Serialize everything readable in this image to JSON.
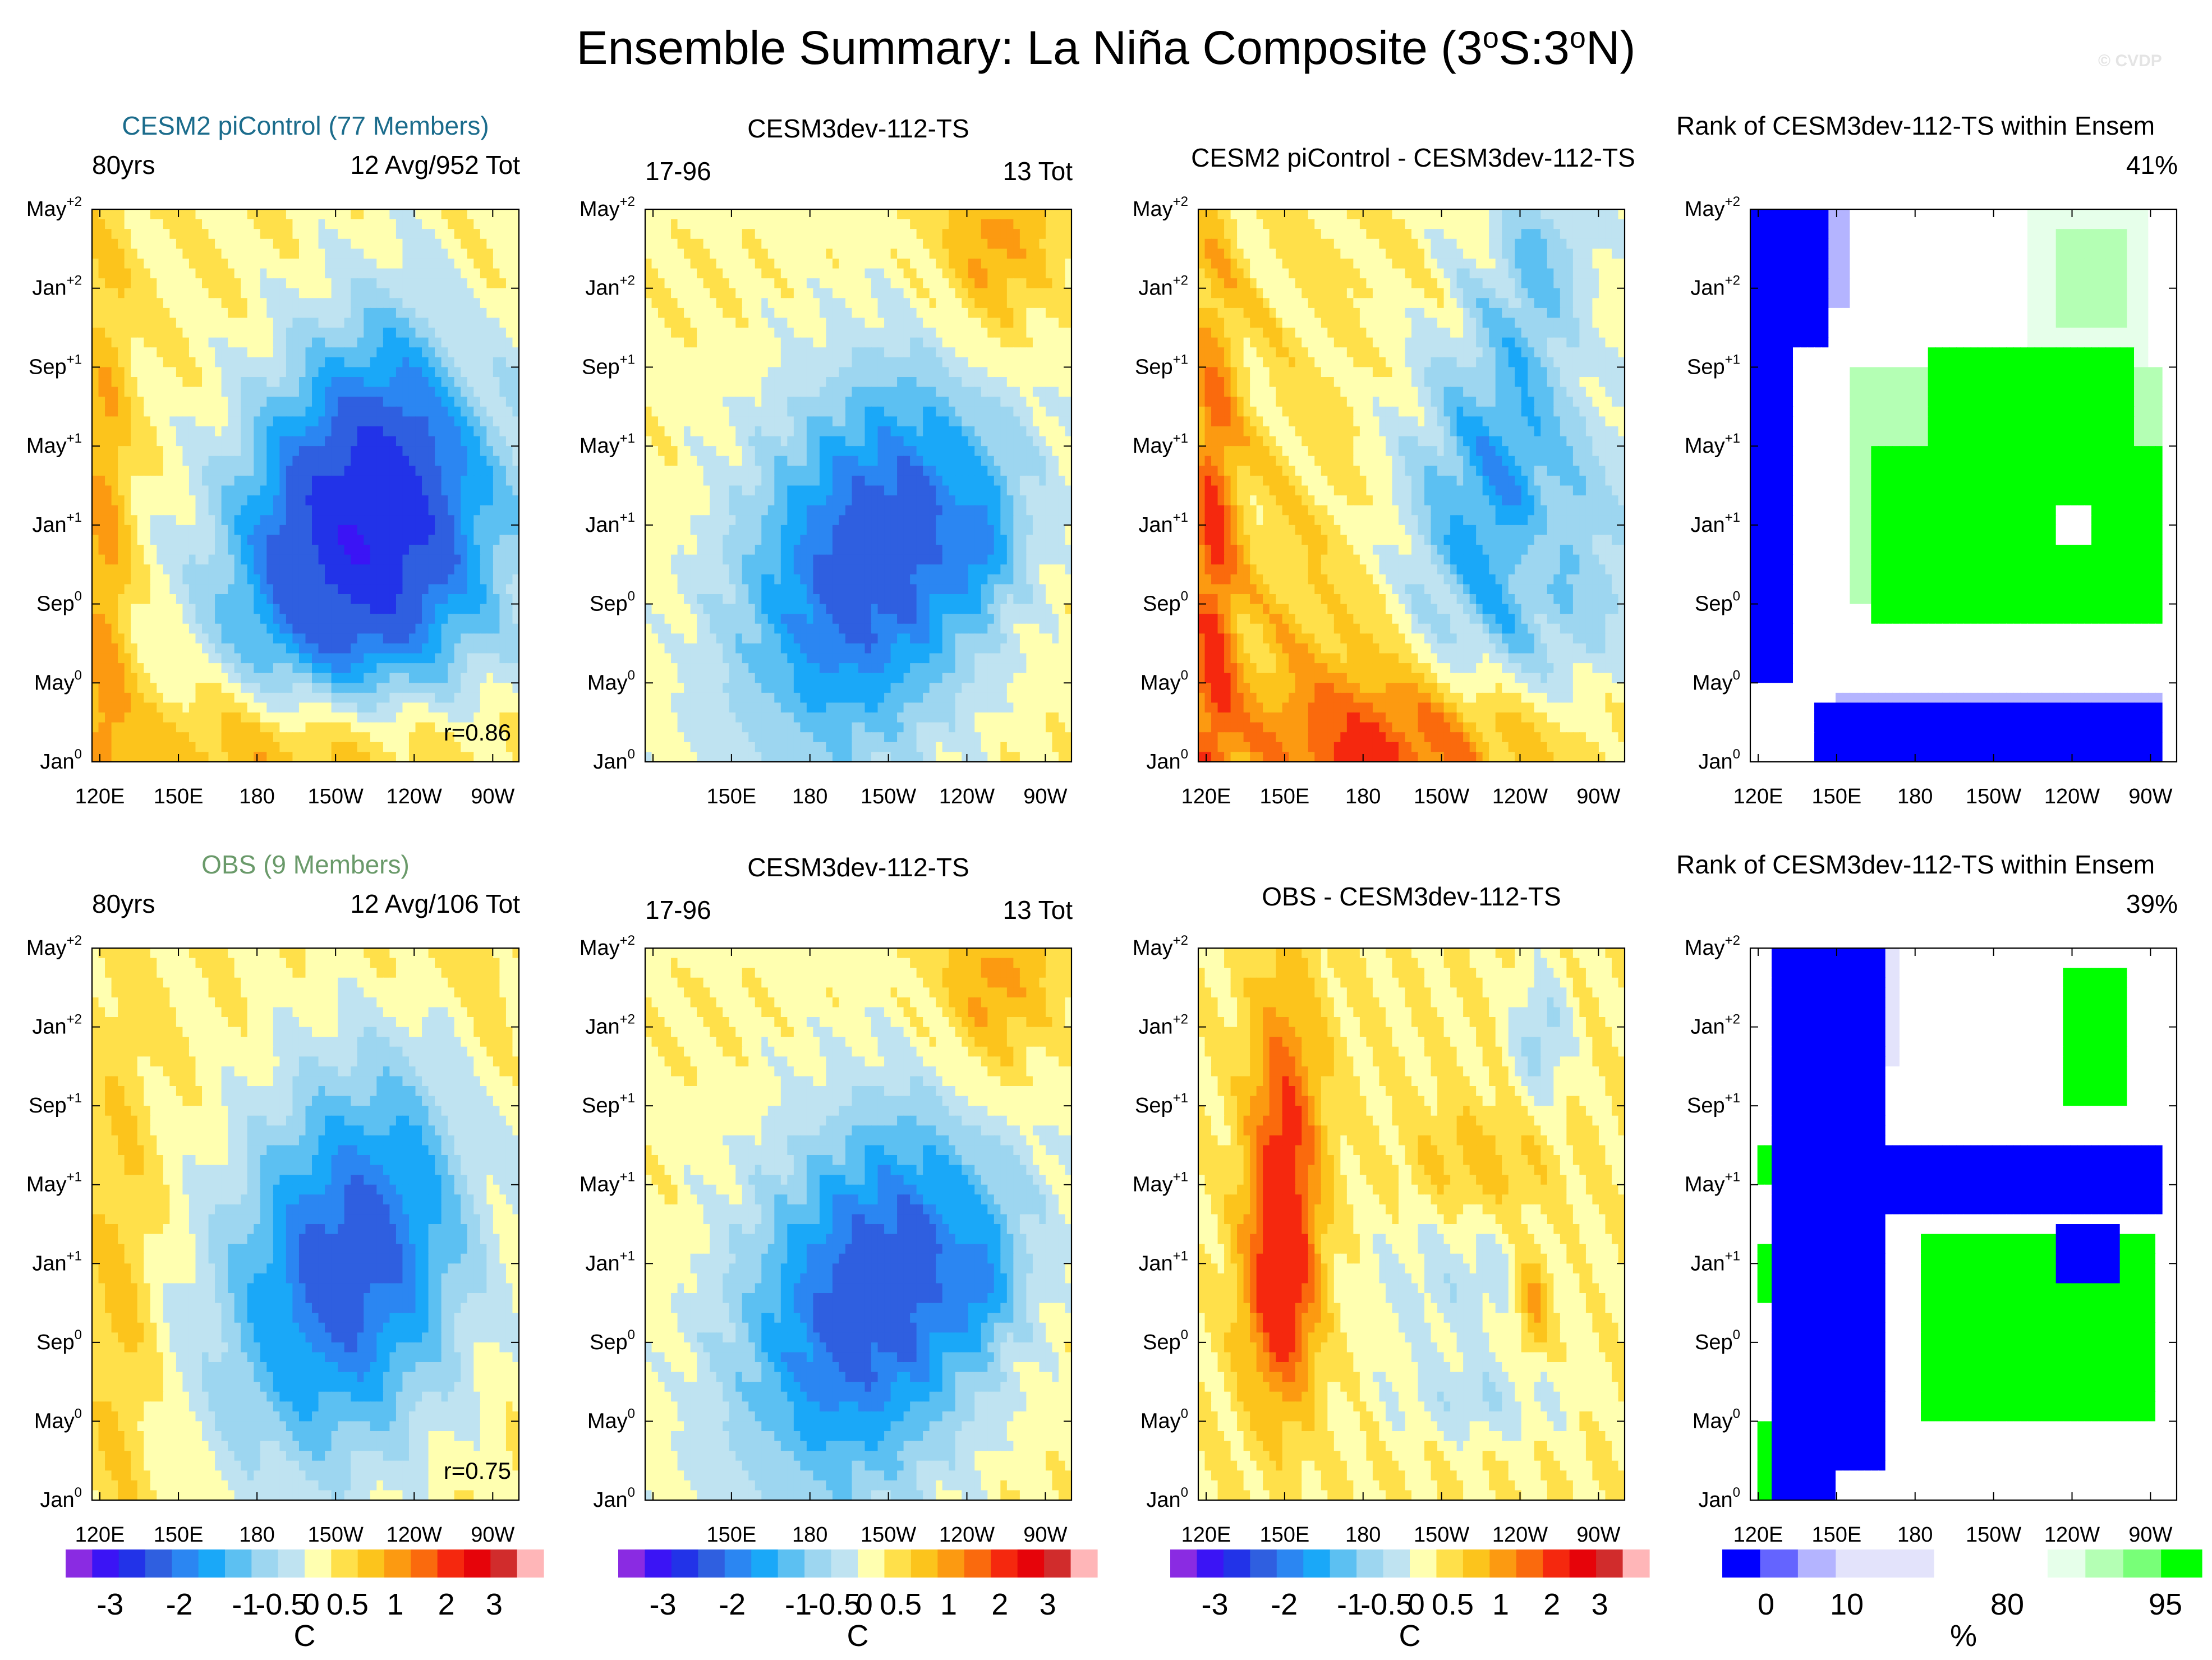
{
  "title": "Ensemble Summary: La Niña Composite (3ºS:3ºN)",
  "title_parts": [
    "Ensemble Summary: La Niña Composite (3",
    "o",
    "S:3",
    "o",
    "N)"
  ],
  "copyright": "© CVDP",
  "colors": {
    "temp_palette": [
      "#8a2be2",
      "#3b14f5",
      "#2233e8",
      "#2f5fe0",
      "#2b86f2",
      "#1aa8f8",
      "#5cc0f2",
      "#9dd6f0",
      "#bfe3f1",
      "#ffffb0",
      "#ffe04a",
      "#fcc41c",
      "#fc9a11",
      "#fa6a0d",
      "#f5280e",
      "#e6040a",
      "#d12c2c",
      "#ffb6b8"
    ],
    "rank_palette": [
      "#0000ff",
      "#6464ff",
      "#b4b4ff",
      "#e3e3fb",
      "#ffffff",
      "#e6ffea",
      "#b4ffb4",
      "#78ff78",
      "#00ff00"
    ]
  },
  "panels": [
    {
      "row": 0,
      "col": 0,
      "title": "CESM2 piControl (77 Members)",
      "title_color": "#1b6c8c",
      "left": "80yrs",
      "right": "12 Avg/952 Tot",
      "corr": "r=0.86"
    },
    {
      "row": 0,
      "col": 1,
      "title": "CESM3dev-112-TS",
      "left": "17-96",
      "right": "13 Tot"
    },
    {
      "row": 0,
      "col": 2,
      "title": "CESM2 piControl - CESM3dev-112-TS"
    },
    {
      "row": 0,
      "col": 3,
      "title": "Rank of CESM3dev-112-TS within Ensem",
      "right": "41%"
    },
    {
      "row": 1,
      "col": 0,
      "title": "OBS (9 Members)",
      "title_color": "#6a9a6a",
      "left": "80yrs",
      "right": "12 Avg/106 Tot",
      "corr": "r=0.75"
    },
    {
      "row": 1,
      "col": 1,
      "title": "CESM3dev-112-TS",
      "left": "17-96",
      "right": "13 Tot"
    },
    {
      "row": 1,
      "col": 2,
      "title": "OBS - CESM3dev-112-TS"
    },
    {
      "row": 1,
      "col": 3,
      "title": "Rank of CESM3dev-112-TS within Ensem",
      "right": "39%"
    }
  ],
  "colorbars": [
    {
      "unit": "C",
      "labels": [
        "-3",
        "-2",
        "-1",
        "-0.5",
        "0",
        "0.5",
        "1",
        "2",
        "3"
      ]
    },
    {
      "unit": "C",
      "labels": [
        "-3",
        "-2",
        "-1",
        "-0.5",
        "0",
        "0.5",
        "1",
        "2",
        "3"
      ]
    },
    {
      "unit": "C",
      "labels": [
        "-3",
        "-2",
        "-1",
        "-0.5",
        "0",
        "0.5",
        "1",
        "2",
        "3"
      ]
    },
    {
      "unit": "%",
      "labels": [
        "0",
        "10",
        "80",
        "95"
      ]
    }
  ],
  "chart_data": {
    "type": "heatmap",
    "description_axes": "Hovmöller: longitude (x) vs lead month (y)",
    "x_ticks": [
      "120E",
      "150E",
      "180",
      "150W",
      "120W",
      "90W"
    ],
    "x_values_deg_east": [
      120,
      150,
      180,
      210,
      240,
      270
    ],
    "y_ticks": [
      {
        "base": "Jan",
        "sup": "0"
      },
      {
        "base": "May",
        "sup": "0"
      },
      {
        "base": "Sep",
        "sup": "0"
      },
      {
        "base": "Jan",
        "sup": "+1"
      },
      {
        "base": "May",
        "sup": "+1"
      },
      {
        "base": "Sep",
        "sup": "+1"
      },
      {
        "base": "Jan",
        "sup": "+2"
      },
      {
        "base": "May",
        "sup": "+2"
      }
    ],
    "y_values_month": [
      0,
      4,
      8,
      12,
      16,
      20,
      24,
      28
    ],
    "temp_levels": [
      -3,
      -2.5,
      -2,
      -1.5,
      -1.25,
      -1,
      -0.75,
      -0.5,
      -0.25,
      0,
      0.25,
      0.5,
      0.75,
      1,
      1.5,
      2,
      2.5,
      3
    ],
    "rank_levels": [
      0,
      5,
      10,
      20,
      80,
      90,
      95,
      100
    ]
  }
}
